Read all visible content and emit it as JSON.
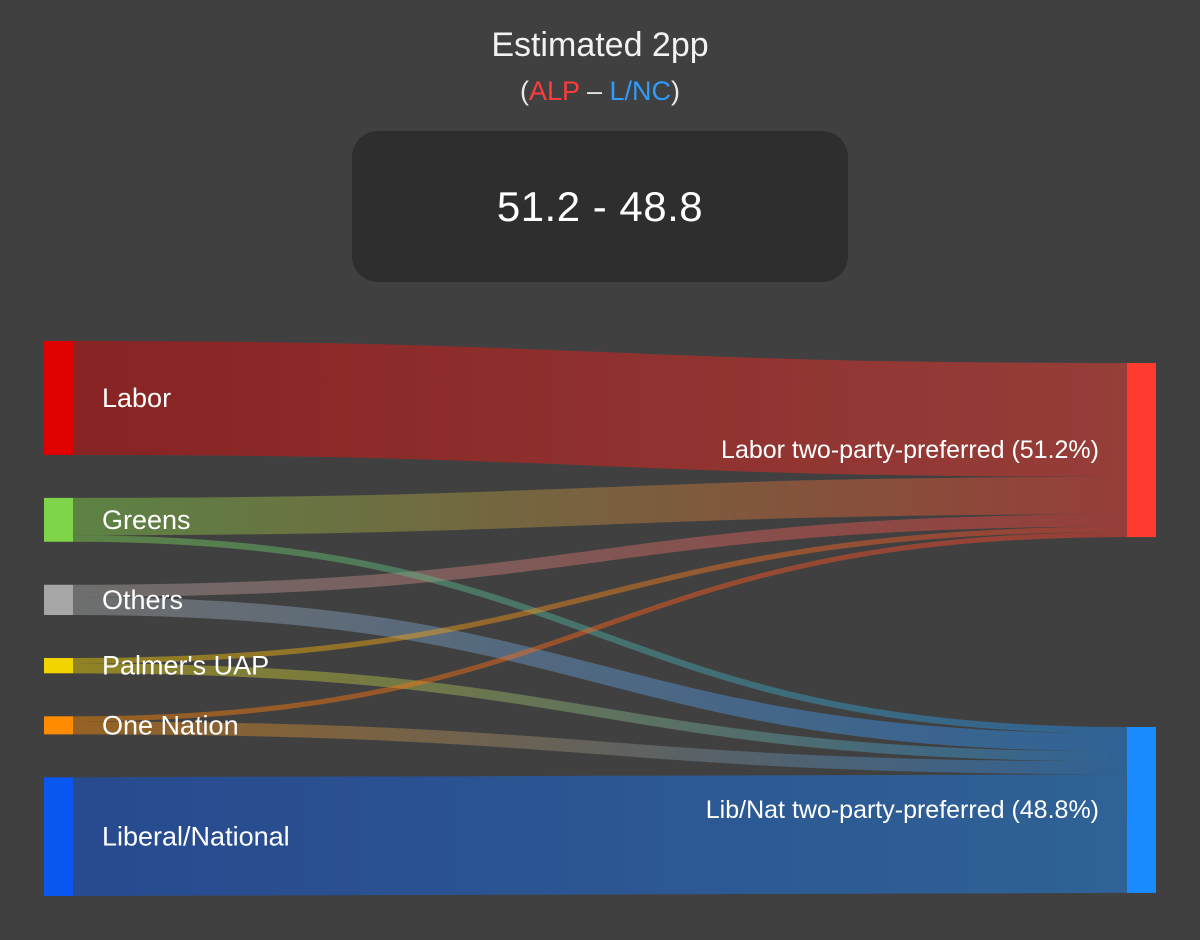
{
  "header": {
    "title": "Estimated 2pp",
    "subtitle_open": "(",
    "subtitle_alp": "ALP",
    "subtitle_sep": " – ",
    "subtitle_lnc": "L/NC",
    "subtitle_close": ")",
    "result": "51.2 - 48.8"
  },
  "colors": {
    "background": "#404040",
    "alp": "#ff3b3b",
    "lnc": "#2e9bff"
  },
  "chart_data": {
    "type": "sankey",
    "unit": "%",
    "sources": [
      {
        "id": "labor",
        "name": "Labor",
        "color": "#e00000"
      },
      {
        "id": "greens",
        "name": "Greens",
        "color": "#7fd44a"
      },
      {
        "id": "others",
        "name": "Others",
        "color": "#a6a6a6"
      },
      {
        "id": "uap",
        "name": "Palmer's UAP",
        "color": "#f2d500"
      },
      {
        "id": "on",
        "name": "One Nation",
        "color": "#ff8c00"
      },
      {
        "id": "lnp",
        "name": "Liberal/National",
        "color": "#0a56f0"
      }
    ],
    "targets": [
      {
        "id": "alp2pp",
        "name": "Labor two-party-preferred (51.2%)",
        "color": "#ff3b30",
        "value": 51.2
      },
      {
        "id": "lnc2pp",
        "name": "Lib/Nat two-party-preferred (48.8%)",
        "color": "#1a8cff",
        "value": 48.8
      }
    ],
    "links": [
      {
        "source": "labor",
        "target": "alp2pp",
        "value": 33.5
      },
      {
        "source": "greens",
        "target": "alp2pp",
        "value": 11.0
      },
      {
        "source": "greens",
        "target": "lnc2pp",
        "value": 1.9
      },
      {
        "source": "others",
        "target": "alp2pp",
        "value": 3.6
      },
      {
        "source": "others",
        "target": "lnc2pp",
        "value": 5.3
      },
      {
        "source": "uap",
        "target": "alp2pp",
        "value": 1.6
      },
      {
        "source": "uap",
        "target": "lnc2pp",
        "value": 2.9
      },
      {
        "source": "on",
        "target": "alp2pp",
        "value": 1.5
      },
      {
        "source": "on",
        "target": "lnc2pp",
        "value": 3.8
      },
      {
        "source": "lnp",
        "target": "lnc2pp",
        "value": 34.9
      }
    ]
  }
}
